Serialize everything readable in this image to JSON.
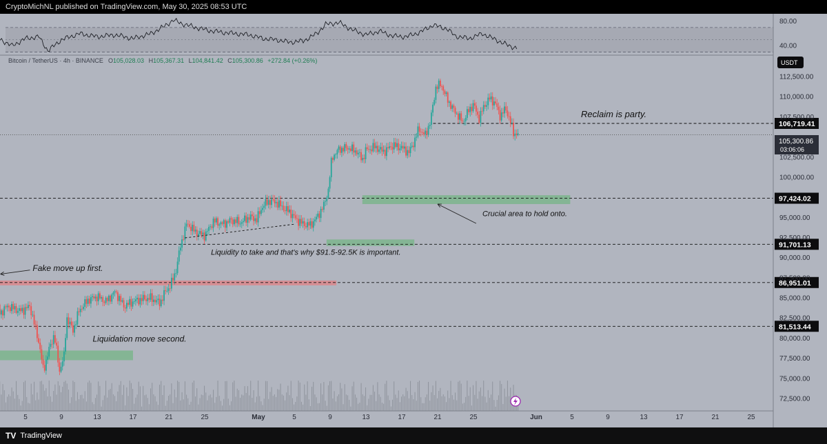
{
  "header": {
    "published": "CryptoMichNL published on TradingView.com, May 30, 2025 08:53 UTC"
  },
  "footer": {
    "brand": "TradingView",
    "logo": "TV"
  },
  "chart_data": {
    "type": "candlestick",
    "title": "Bitcoin / TetherUS · 4h · BINANCE",
    "ohlc_label": {
      "o_key": "O",
      "o": "105,028.03",
      "h_key": "H",
      "h": "105,367.31",
      "l_key": "L",
      "l": "104,841.42",
      "c_key": "C",
      "c": "105,300.86",
      "change": "+272.84 (+0.26%)"
    },
    "currency": "USDT",
    "last_price": "105,300.86",
    "countdown": "03:06:06",
    "ylim": [
      71000,
      115200
    ],
    "y_ticks": [
      {
        "v": 72500,
        "label": "72,500.00"
      },
      {
        "v": 75000,
        "label": "75,000.00"
      },
      {
        "v": 77500,
        "label": "77,500.00"
      },
      {
        "v": 80000,
        "label": "80,000.00"
      },
      {
        "v": 82500,
        "label": "82,500.00"
      },
      {
        "v": 85000,
        "label": "85,000.00"
      },
      {
        "v": 87500,
        "label": "87,500.00"
      },
      {
        "v": 90000,
        "label": "90,000.00"
      },
      {
        "v": 92500,
        "label": "92,500.00"
      },
      {
        "v": 95000,
        "label": "95,000.00"
      },
      {
        "v": 100000,
        "label": "100,000.00"
      },
      {
        "v": 102500,
        "label": "102,500.00"
      },
      {
        "v": 107500,
        "label": "107,500.00"
      },
      {
        "v": 110000,
        "label": "110,000.00"
      },
      {
        "v": 112500,
        "label": "112,500.00"
      }
    ],
    "x_ticks": [
      {
        "d": 5,
        "label": "5"
      },
      {
        "d": 9,
        "label": "9"
      },
      {
        "d": 13,
        "label": "13"
      },
      {
        "d": 17,
        "label": "17"
      },
      {
        "d": 21,
        "label": "21"
      },
      {
        "d": 25,
        "label": "25"
      },
      {
        "d": 31,
        "label": "May",
        "bold": true
      },
      {
        "d": 35,
        "label": "5"
      },
      {
        "d": 39,
        "label": "9"
      },
      {
        "d": 43,
        "label": "13"
      },
      {
        "d": 47,
        "label": "17"
      },
      {
        "d": 51,
        "label": "21"
      },
      {
        "d": 55,
        "label": "25"
      },
      {
        "d": 62,
        "label": "Jun",
        "bold": true
      },
      {
        "d": 66,
        "label": "5"
      },
      {
        "d": 70,
        "label": "9"
      },
      {
        "d": 74,
        "label": "13"
      },
      {
        "d": 78,
        "label": "17"
      },
      {
        "d": 82,
        "label": "21"
      },
      {
        "d": 86,
        "label": "25"
      }
    ],
    "price_path": [
      [
        1.8,
        87800
      ],
      [
        2.0,
        83000
      ],
      [
        3.0,
        84000
      ],
      [
        4.5,
        83400
      ],
      [
        5.5,
        84000
      ],
      [
        6.5,
        79500
      ],
      [
        7.0,
        76000
      ],
      [
        7.6,
        78500
      ],
      [
        8.2,
        80500
      ],
      [
        8.8,
        76000
      ],
      [
        9.3,
        77800
      ],
      [
        9.6,
        82600
      ],
      [
        10.3,
        81000
      ],
      [
        11.0,
        83500
      ],
      [
        12.0,
        84800
      ],
      [
        13.0,
        85200
      ],
      [
        14.0,
        84600
      ],
      [
        15.0,
        85800
      ],
      [
        16.0,
        84000
      ],
      [
        17.0,
        84600
      ],
      [
        18.0,
        84900
      ],
      [
        19.0,
        85000
      ],
      [
        20.0,
        84400
      ],
      [
        20.6,
        85800
      ],
      [
        21.2,
        86600
      ],
      [
        21.8,
        88500
      ],
      [
        22.3,
        91500
      ],
      [
        23.0,
        94300
      ],
      [
        24.0,
        93200
      ],
      [
        25.0,
        92800
      ],
      [
        26.0,
        94600
      ],
      [
        27.0,
        94200
      ],
      [
        28.0,
        94700
      ],
      [
        29.0,
        94400
      ],
      [
        30.0,
        95100
      ],
      [
        30.8,
        94800
      ],
      [
        31.5,
        96500
      ],
      [
        32.2,
        97100
      ],
      [
        33.0,
        96900
      ],
      [
        33.8,
        96200
      ],
      [
        34.5,
        95700
      ],
      [
        35.2,
        94800
      ],
      [
        36.0,
        94200
      ],
      [
        36.8,
        94100
      ],
      [
        37.5,
        95000
      ],
      [
        38.3,
        96500
      ],
      [
        38.8,
        98500
      ],
      [
        39.2,
        102500
      ],
      [
        40.0,
        103500
      ],
      [
        41.0,
        103700
      ],
      [
        42.0,
        103200
      ],
      [
        42.6,
        102200
      ],
      [
        43.0,
        103400
      ],
      [
        44.0,
        103800
      ],
      [
        45.0,
        103200
      ],
      [
        46.0,
        104000
      ],
      [
        47.0,
        103700
      ],
      [
        47.8,
        103100
      ],
      [
        48.4,
        104500
      ],
      [
        48.9,
        106100
      ],
      [
        49.6,
        105200
      ],
      [
        50.2,
        107000
      ],
      [
        50.8,
        111200
      ],
      [
        51.4,
        111600
      ],
      [
        52.0,
        109900
      ],
      [
        52.6,
        108700
      ],
      [
        53.2,
        107800
      ],
      [
        53.8,
        106900
      ],
      [
        54.4,
        108200
      ],
      [
        55.0,
        109100
      ],
      [
        55.6,
        107300
      ],
      [
        56.2,
        108900
      ],
      [
        56.8,
        109800
      ],
      [
        57.4,
        109300
      ],
      [
        58.0,
        107600
      ],
      [
        58.6,
        108600
      ],
      [
        59.1,
        107000
      ],
      [
        59.5,
        105500
      ],
      [
        60.0,
        105300
      ]
    ],
    "rsi": {
      "ylim": [
        25,
        90
      ],
      "levels": [
        {
          "v": 80,
          "label": "80.00"
        },
        {
          "v": 40,
          "label": "40.00"
        }
      ],
      "band": [
        30,
        70
      ],
      "path": [
        [
          0.5,
          48
        ],
        [
          2,
          52
        ],
        [
          3.5,
          40
        ],
        [
          5,
          52
        ],
        [
          6.5,
          55
        ],
        [
          7.5,
          32
        ],
        [
          9,
          50
        ],
        [
          11,
          60
        ],
        [
          13,
          55
        ],
        [
          15,
          58
        ],
        [
          17,
          52
        ],
        [
          19,
          60
        ],
        [
          20.5,
          72
        ],
        [
          21.5,
          82
        ],
        [
          22.5,
          76
        ],
        [
          24,
          70
        ],
        [
          25.5,
          65
        ],
        [
          27,
          62
        ],
        [
          28.5,
          60
        ],
        [
          30,
          58
        ],
        [
          31.5,
          52
        ],
        [
          33,
          50
        ],
        [
          34.5,
          46
        ],
        [
          36,
          48
        ],
        [
          37.5,
          60
        ],
        [
          38.5,
          75
        ],
        [
          40,
          78
        ],
        [
          41.5,
          66
        ],
        [
          43,
          58
        ],
        [
          44.5,
          64
        ],
        [
          46,
          56
        ],
        [
          47.5,
          55
        ],
        [
          49,
          62
        ],
        [
          50.5,
          74
        ],
        [
          52,
          68
        ],
        [
          53,
          56
        ],
        [
          54.5,
          52
        ],
        [
          56,
          60
        ],
        [
          57.5,
          50
        ],
        [
          59,
          40
        ],
        [
          60,
          36
        ]
      ]
    },
    "levels": [
      {
        "v": 106719.41,
        "label": "106,719.41",
        "from_d": 50.5
      },
      {
        "v": 97424.02,
        "label": "97,424.02",
        "from_d": 0
      },
      {
        "v": 91701.13,
        "label": "91,701.13",
        "from_d": 0
      },
      {
        "v": 86951.01,
        "label": "86,951.01",
        "from_d": 0
      },
      {
        "v": 81513.44,
        "label": "81,513.44",
        "from_d": 0
      }
    ],
    "zones": [
      {
        "type": "support",
        "from_d": 1.8,
        "to_d": 17.0,
        "y1": 78500,
        "y2": 77300
      },
      {
        "type": "resistance",
        "from_d": 1.8,
        "to_d": 39.7,
        "y1": 87200,
        "y2": 86600
      },
      {
        "type": "support",
        "from_d": 38.6,
        "to_d": 48.4,
        "y1": 92300,
        "y2": 91500
      },
      {
        "type": "support",
        "from_d": 42.6,
        "to_d": 65.8,
        "y1": 97800,
        "y2": 96700
      }
    ],
    "annotations": [
      {
        "text": "Reclaim is party.",
        "d": 67,
        "v": 107500,
        "size": 13
      },
      {
        "text": "Crucial area to hold onto.",
        "d": 56,
        "v": 95200,
        "size": 11
      },
      {
        "text": "Liquidity to take and that's why $91.5-92.5K is important.",
        "d": 25.7,
        "v": 90400,
        "size": 11
      },
      {
        "text": "Fake move up first.",
        "d": 5.8,
        "v": 88400,
        "size": 12
      },
      {
        "text": "Liquidation move second.",
        "d": 12.5,
        "v": 79600,
        "size": 12
      }
    ],
    "colors": {
      "up": "#26a69a",
      "down": "#ef5350",
      "zone_green": "#7fb58f",
      "zone_red": "#d98a8e",
      "bg": "#b1b5bf"
    }
  }
}
